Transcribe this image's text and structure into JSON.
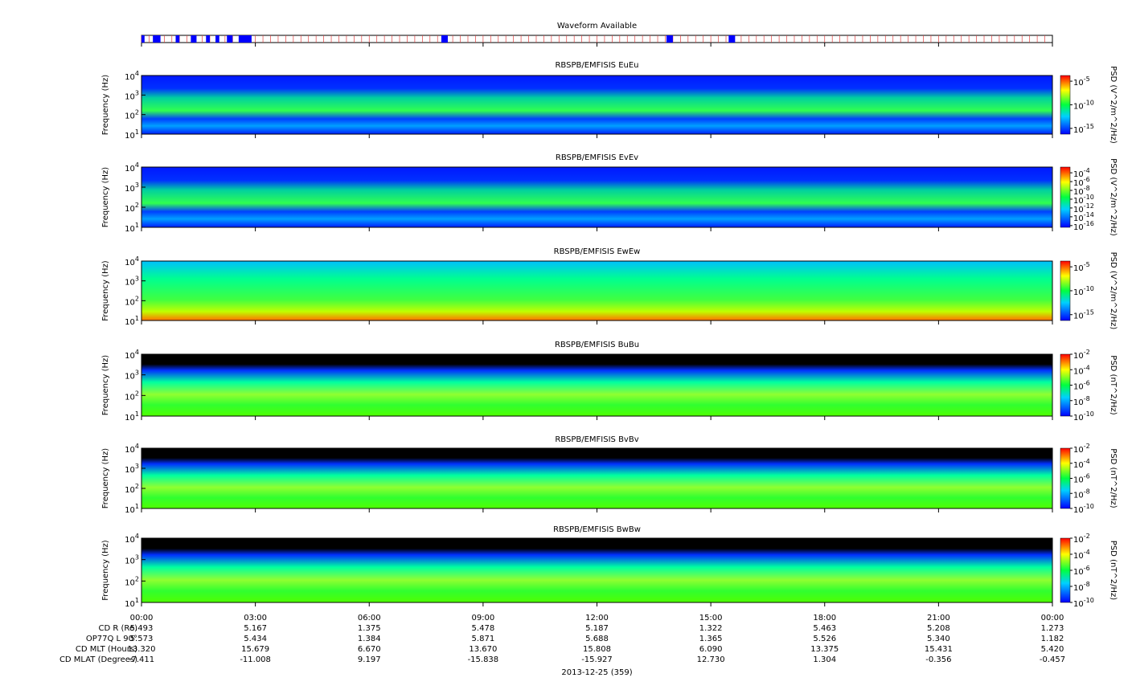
{
  "chart_data": {
    "type": "spectrogram",
    "waveform": {
      "title": "Waveform Available",
      "intervals": [
        [
          0,
          0.08
        ],
        [
          0.3,
          0.5
        ],
        [
          0.9,
          1.0
        ],
        [
          1.3,
          1.45
        ],
        [
          1.7,
          1.8
        ],
        [
          1.95,
          2.05
        ],
        [
          2.25,
          2.4
        ],
        [
          2.56,
          2.9
        ],
        [
          7.9,
          8.07
        ],
        [
          13.83,
          14.0
        ],
        [
          15.47,
          15.64
        ]
      ],
      "color": "#0000ff"
    },
    "xlim": [
      0,
      24
    ],
    "xticks": [
      {
        "value": 0,
        "label": "00:00"
      },
      {
        "value": 3,
        "label": "03:00"
      },
      {
        "value": 6,
        "label": "06:00"
      },
      {
        "value": 9,
        "label": "09:00"
      },
      {
        "value": 12,
        "label": "12:00"
      },
      {
        "value": 15,
        "label": "15:00"
      },
      {
        "value": 18,
        "label": "18:00"
      },
      {
        "value": 21,
        "label": "21:00"
      },
      {
        "value": 24,
        "label": "00:00"
      }
    ],
    "panels": [
      {
        "title": "RBSPB/EMFISIS  EuEu",
        "ylabel": "Frequency (Hz)",
        "ylim": [
          10,
          10000
        ],
        "log": true,
        "yticks": [
          {
            "value": 10,
            "label": "10",
            "exponent": "1"
          },
          {
            "value": 100,
            "label": "10",
            "exponent": "2"
          },
          {
            "value": 1000,
            "label": "10",
            "exponent": "3"
          },
          {
            "value": 10000,
            "label": "10",
            "exponent": "4"
          }
        ],
        "colorbar_label": "PSD (V^2/m^2/Hz)",
        "clim": [
          6e-17,
          0.00016
        ],
        "cticks": [
          {
            "value": 1e-05,
            "label": "10",
            "exponent": "-5"
          },
          {
            "value": 1e-10,
            "label": "10",
            "exponent": "-10"
          },
          {
            "value": 1e-15,
            "label": "10",
            "exponent": "-15"
          }
        ]
      },
      {
        "title": "RBSPB/EMFISIS  EvEv",
        "ylabel": "Frequency (Hz)",
        "ylim": [
          10,
          10000
        ],
        "log": true,
        "yticks": [
          {
            "value": 10,
            "label": "10",
            "exponent": "1"
          },
          {
            "value": 100,
            "label": "10",
            "exponent": "2"
          },
          {
            "value": 1000,
            "label": "10",
            "exponent": "3"
          },
          {
            "value": 10000,
            "label": "10",
            "exponent": "4"
          }
        ],
        "colorbar_label": "PSD (V^2/m^2/Hz)",
        "clim": [
          4e-17,
          0.002
        ],
        "cticks": [
          {
            "value": 0.0001,
            "label": "10",
            "exponent": "-4"
          },
          {
            "value": 1e-06,
            "label": "10",
            "exponent": "-6"
          },
          {
            "value": 1e-08,
            "label": "10",
            "exponent": "-8"
          },
          {
            "value": 1e-10,
            "label": "10",
            "exponent": "-10"
          },
          {
            "value": 1e-12,
            "label": "10",
            "exponent": "-12"
          },
          {
            "value": 1e-14,
            "label": "10",
            "exponent": "-14"
          },
          {
            "value": 1e-16,
            "label": "10",
            "exponent": "-16"
          }
        ]
      },
      {
        "title": "RBSPB/EMFISIS  EwEw",
        "ylabel": "Frequency (Hz)",
        "ylim": [
          10,
          10000
        ],
        "log": true,
        "yticks": [
          {
            "value": 10,
            "label": "10",
            "exponent": "1"
          },
          {
            "value": 100,
            "label": "10",
            "exponent": "2"
          },
          {
            "value": 1000,
            "label": "10",
            "exponent": "3"
          },
          {
            "value": 10000,
            "label": "10",
            "exponent": "4"
          }
        ],
        "colorbar_label": "PSD (V^2/m^2/Hz)",
        "clim": [
          6e-17,
          0.00016
        ],
        "cticks": [
          {
            "value": 1e-05,
            "label": "10",
            "exponent": "-5"
          },
          {
            "value": 1e-10,
            "label": "10",
            "exponent": "-10"
          },
          {
            "value": 1e-15,
            "label": "10",
            "exponent": "-15"
          }
        ]
      },
      {
        "title": "RBSPB/EMFISIS  BuBu",
        "ylabel": "Frequency (Hz)",
        "ylim": [
          10,
          10000
        ],
        "log": true,
        "yticks": [
          {
            "value": 10,
            "label": "10",
            "exponent": "1"
          },
          {
            "value": 100,
            "label": "10",
            "exponent": "2"
          },
          {
            "value": 1000,
            "label": "10",
            "exponent": "3"
          },
          {
            "value": 10000,
            "label": "10",
            "exponent": "4"
          }
        ],
        "colorbar_label": "PSD (nT^2/Hz)",
        "clim": [
          1e-10,
          0.01
        ],
        "cticks": [
          {
            "value": 0.01,
            "label": "10",
            "exponent": "-2"
          },
          {
            "value": 0.0001,
            "label": "10",
            "exponent": "-4"
          },
          {
            "value": 1e-06,
            "label": "10",
            "exponent": "-6"
          },
          {
            "value": 1e-08,
            "label": "10",
            "exponent": "-8"
          },
          {
            "value": 1e-10,
            "label": "10",
            "exponent": "-10"
          }
        ]
      },
      {
        "title": "RBSPB/EMFISIS  BvBv",
        "ylabel": "Frequency (Hz)",
        "ylim": [
          10,
          10000
        ],
        "log": true,
        "yticks": [
          {
            "value": 10,
            "label": "10",
            "exponent": "1"
          },
          {
            "value": 100,
            "label": "10",
            "exponent": "2"
          },
          {
            "value": 1000,
            "label": "10",
            "exponent": "3"
          },
          {
            "value": 10000,
            "label": "10",
            "exponent": "4"
          }
        ],
        "colorbar_label": "PSD (nT^2/Hz)",
        "clim": [
          1e-10,
          0.01
        ],
        "cticks": [
          {
            "value": 0.01,
            "label": "10",
            "exponent": "-2"
          },
          {
            "value": 0.0001,
            "label": "10",
            "exponent": "-4"
          },
          {
            "value": 1e-06,
            "label": "10",
            "exponent": "-6"
          },
          {
            "value": 1e-08,
            "label": "10",
            "exponent": "-8"
          },
          {
            "value": 1e-10,
            "label": "10",
            "exponent": "-10"
          }
        ]
      },
      {
        "title": "RBSPB/EMFISIS  BwBw",
        "ylabel": "Frequency (Hz)",
        "ylim": [
          10,
          10000
        ],
        "log": true,
        "yticks": [
          {
            "value": 10,
            "label": "10",
            "exponent": "1"
          },
          {
            "value": 100,
            "label": "10",
            "exponent": "2"
          },
          {
            "value": 1000,
            "label": "10",
            "exponent": "3"
          },
          {
            "value": 10000,
            "label": "10",
            "exponent": "4"
          }
        ],
        "colorbar_label": "PSD (nT^2/Hz)",
        "clim": [
          1e-10,
          0.01
        ],
        "cticks": [
          {
            "value": 0.01,
            "label": "10",
            "exponent": "-2"
          },
          {
            "value": 0.0001,
            "label": "10",
            "exponent": "-4"
          },
          {
            "value": 1e-06,
            "label": "10",
            "exponent": "-6"
          },
          {
            "value": 1e-08,
            "label": "10",
            "exponent": "-8"
          },
          {
            "value": 1e-10,
            "label": "10",
            "exponent": "-10"
          }
        ]
      }
    ],
    "ephemeris": [
      {
        "label": "CD R (Re)",
        "values": [
          "5.493",
          "5.167",
          "1.375",
          "5.478",
          "5.187",
          "1.322",
          "5.463",
          "5.208",
          "1.273"
        ]
      },
      {
        "label": "OP77Q L 90°",
        "values": [
          "5.573",
          "5.434",
          "1.384",
          "5.871",
          "5.688",
          "1.365",
          "5.526",
          "5.340",
          "1.182"
        ]
      },
      {
        "label": "CD MLT (Hours)",
        "values": [
          "13.320",
          "15.679",
          "6.670",
          "13.670",
          "15.808",
          "6.090",
          "13.375",
          "15.431",
          "5.420"
        ]
      },
      {
        "label": "CD MLAT (Degrees)",
        "values": [
          "-7.411",
          "-11.008",
          "9.197",
          "-15.838",
          "-15.927",
          "12.730",
          "1.304",
          "-0.356",
          "-0.457"
        ]
      }
    ],
    "date": "2013-12-25 (359)"
  }
}
